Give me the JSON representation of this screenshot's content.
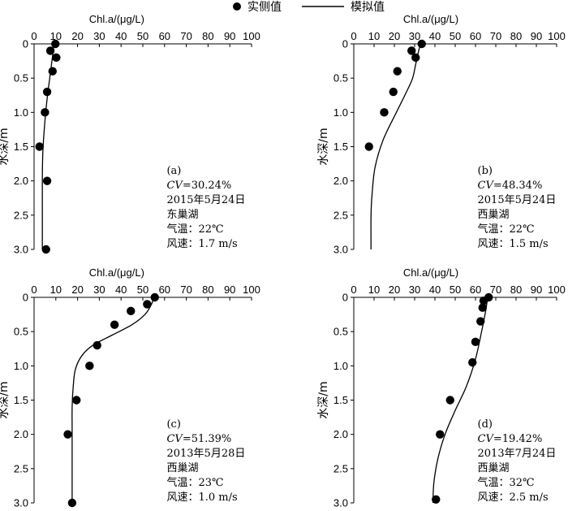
{
  "legend": {
    "observed_label": "实侧值",
    "simulated_label": "模拟值"
  },
  "chart_data": [
    {
      "type": "scatter",
      "xlabel": "Chl.a/(μg/L)",
      "ylabel": "水深/m",
      "xlim": [
        0,
        100
      ],
      "ylim": [
        0,
        3.0
      ],
      "y_inverted": true,
      "x_ticks": [
        "0",
        "10",
        "20",
        "30",
        "40",
        "50",
        "60",
        "70",
        "80",
        "90",
        "100"
      ],
      "y_ticks": [
        "0",
        "0.5",
        "1.0",
        "1.5",
        "2.0",
        "2.5",
        "3.0"
      ],
      "annotation": {
        "label": "(a)",
        "cv_prefix": "CV",
        "cv_value": "=30.24%",
        "date": "2015年5月24日",
        "lake": "东巢湖",
        "temp": "气温：22℃",
        "wind": "风速：1.7 m/s"
      },
      "series": [
        {
          "kind": "observed",
          "points": [
            [
              9.8,
              0.0
            ],
            [
              7.5,
              0.1
            ],
            [
              10.2,
              0.2
            ],
            [
              8.5,
              0.4
            ],
            [
              6.0,
              0.7
            ],
            [
              5.0,
              1.0
            ],
            [
              2.5,
              1.5
            ],
            [
              6.0,
              2.0
            ],
            [
              5.5,
              3.0
            ]
          ]
        },
        {
          "kind": "simulated",
          "points": [
            [
              9.0,
              0.0
            ],
            [
              8.8,
              0.1
            ],
            [
              8.0,
              0.3
            ],
            [
              7.2,
              0.5
            ],
            [
              6.0,
              0.8
            ],
            [
              4.8,
              1.2
            ],
            [
              4.0,
              1.6
            ],
            [
              3.8,
              2.0
            ],
            [
              3.8,
              2.5
            ],
            [
              3.8,
              3.0
            ]
          ]
        }
      ]
    },
    {
      "type": "scatter",
      "xlabel": "Chl.a/(μg/L)",
      "ylabel": "水深/m",
      "xlim": [
        0,
        100
      ],
      "ylim": [
        0,
        3.0
      ],
      "y_inverted": true,
      "x_ticks": [
        "0",
        "10",
        "20",
        "30",
        "40",
        "50",
        "60",
        "70",
        "80",
        "90",
        "100"
      ],
      "y_ticks": [
        "0",
        "0.5",
        "1.0",
        "1.5",
        "2.0",
        "2.5",
        "3.0"
      ],
      "annotation": {
        "label": "(b)",
        "cv_prefix": "CV",
        "cv_value": "=48.34%",
        "date": "2015年5月24日",
        "lake": "西巢湖",
        "temp": "气温：22℃",
        "wind": "风速：1.5 m/s"
      },
      "series": [
        {
          "kind": "observed",
          "points": [
            [
              33.5,
              0.0
            ],
            [
              28.5,
              0.1
            ],
            [
              30.5,
              0.2
            ],
            [
              21.5,
              0.4
            ],
            [
              19.5,
              0.7
            ],
            [
              15.0,
              1.0
            ],
            [
              7.5,
              1.5
            ]
          ]
        },
        {
          "kind": "simulated",
          "points": [
            [
              33.0,
              0.0
            ],
            [
              32.0,
              0.1
            ],
            [
              30.5,
              0.3
            ],
            [
              29.0,
              0.5
            ],
            [
              26.0,
              0.7
            ],
            [
              21.0,
              1.0
            ],
            [
              14.5,
              1.4
            ],
            [
              10.5,
              1.8
            ],
            [
              9.0,
              2.2
            ],
            [
              8.5,
              2.5
            ],
            [
              8.5,
              3.0
            ]
          ]
        }
      ]
    },
    {
      "type": "scatter",
      "xlabel": "Chl.a/(μg/L)",
      "ylabel": "水深/m",
      "xlim": [
        0,
        100
      ],
      "ylim": [
        0,
        3.0
      ],
      "y_inverted": true,
      "x_ticks": [
        "0",
        "10",
        "20",
        "30",
        "40",
        "50",
        "60",
        "70",
        "80",
        "90",
        "100"
      ],
      "y_ticks": [
        "0",
        "0.5",
        "1.0",
        "1.5",
        "2.0",
        "2.5",
        "3.0"
      ],
      "annotation": {
        "label": "(c)",
        "cv_prefix": "CV",
        "cv_value": "=51.39%",
        "date": "2013年5月28日",
        "lake": "西巢湖",
        "temp": "气温：23℃",
        "wind": "风速：1.0 m/s"
      },
      "series": [
        {
          "kind": "observed",
          "points": [
            [
              55.5,
              0.0
            ],
            [
              52.0,
              0.1
            ],
            [
              44.5,
              0.2
            ],
            [
              37.0,
              0.4
            ],
            [
              29.0,
              0.7
            ],
            [
              25.5,
              1.0
            ],
            [
              19.5,
              1.5
            ],
            [
              15.5,
              2.0
            ],
            [
              17.5,
              3.0
            ]
          ]
        },
        {
          "kind": "simulated",
          "points": [
            [
              55.0,
              0.0
            ],
            [
              54.0,
              0.1
            ],
            [
              51.0,
              0.25
            ],
            [
              45.0,
              0.4
            ],
            [
              36.0,
              0.55
            ],
            [
              27.0,
              0.7
            ],
            [
              22.0,
              0.85
            ],
            [
              19.0,
              1.05
            ],
            [
              18.0,
              1.3
            ],
            [
              17.5,
              1.6
            ],
            [
              17.5,
              2.0
            ],
            [
              17.5,
              3.0
            ]
          ]
        }
      ]
    },
    {
      "type": "scatter",
      "xlabel": "Chl.a/(μg/L)",
      "ylabel": "水深/m",
      "xlim": [
        0,
        100
      ],
      "ylim": [
        0,
        3.0
      ],
      "y_inverted": true,
      "x_ticks": [
        "0",
        "10",
        "20",
        "30",
        "40",
        "50",
        "60",
        "70",
        "80",
        "90",
        "100"
      ],
      "y_ticks": [
        "0",
        "0.5",
        "1.0",
        "1.5",
        "2.0",
        "2.5",
        "3.0"
      ],
      "annotation": {
        "label": "(d)",
        "cv_prefix": "CV",
        "cv_value": "=19.42%",
        "date": "2013年7月24日",
        "lake": "西巢湖",
        "temp": "气温：32℃",
        "wind": "风速：2.5 m/s"
      },
      "series": [
        {
          "kind": "observed",
          "points": [
            [
              66.5,
              0.0
            ],
            [
              64.0,
              0.05
            ],
            [
              63.5,
              0.15
            ],
            [
              62.5,
              0.35
            ],
            [
              60.0,
              0.65
            ],
            [
              58.5,
              0.95
            ],
            [
              47.5,
              1.5
            ],
            [
              42.5,
              2.0
            ],
            [
              40.5,
              2.95
            ]
          ]
        },
        {
          "kind": "simulated",
          "points": [
            [
              66.0,
              0.0
            ],
            [
              65.0,
              0.2
            ],
            [
              63.0,
              0.5
            ],
            [
              60.0,
              0.9
            ],
            [
              55.5,
              1.3
            ],
            [
              50.0,
              1.65
            ],
            [
              45.0,
              2.0
            ],
            [
              41.5,
              2.35
            ],
            [
              39.5,
              2.7
            ],
            [
              39.0,
              3.0
            ]
          ]
        }
      ]
    }
  ]
}
